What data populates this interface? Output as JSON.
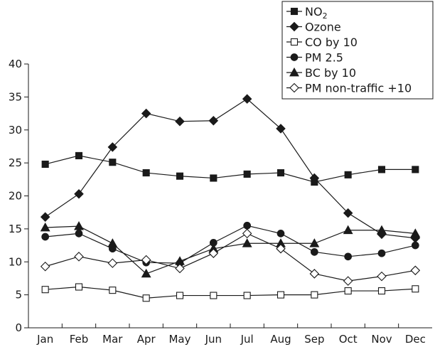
{
  "chart_data": {
    "type": "line",
    "title": "",
    "xlabel": "",
    "ylabel": "",
    "categories": [
      "Jan",
      "Feb",
      "Mar",
      "Apr",
      "May",
      "Jun",
      "Jul",
      "Aug",
      "Sep",
      "Oct",
      "Nov",
      "Dec"
    ],
    "ylim": [
      0,
      40
    ],
    "yticks": [
      "0",
      "5",
      "10",
      "15",
      "20",
      "25",
      "30",
      "35",
      "40"
    ],
    "grid": false,
    "legend_position": "top-right",
    "series": [
      {
        "name": "NO",
        "name_sub": "2",
        "marker": "square-filled",
        "values": [
          24.8,
          26.1,
          25.1,
          23.5,
          23.0,
          22.7,
          23.3,
          23.5,
          22.1,
          23.2,
          24.0,
          24.0
        ]
      },
      {
        "name": "Ozone",
        "marker": "diamond-filled",
        "values": [
          16.8,
          20.3,
          27.4,
          32.5,
          31.3,
          31.4,
          34.7,
          30.2,
          22.7,
          17.4,
          14.2,
          13.6
        ]
      },
      {
        "name": "CO by 10",
        "marker": "square-open",
        "values": [
          5.8,
          6.2,
          5.7,
          4.5,
          4.9,
          4.9,
          4.9,
          5.0,
          5.0,
          5.6,
          5.6,
          5.9
        ]
      },
      {
        "name": "PM 2.5",
        "marker": "circle-filled",
        "values": [
          13.8,
          14.3,
          12.0,
          9.9,
          9.8,
          12.9,
          15.5,
          14.3,
          11.5,
          10.8,
          11.3,
          12.5
        ]
      },
      {
        "name": "BC by 10",
        "marker": "triangle-filled",
        "values": [
          15.2,
          15.4,
          12.8,
          8.2,
          10.1,
          12.0,
          12.8,
          12.8,
          12.8,
          14.8,
          14.8,
          14.3
        ]
      },
      {
        "name": "PM non-traffic +10",
        "marker": "diamond-open",
        "values": [
          9.3,
          10.8,
          9.8,
          10.3,
          9.0,
          11.3,
          14.3,
          12.0,
          8.2,
          7.1,
          7.8,
          8.7
        ]
      }
    ]
  }
}
